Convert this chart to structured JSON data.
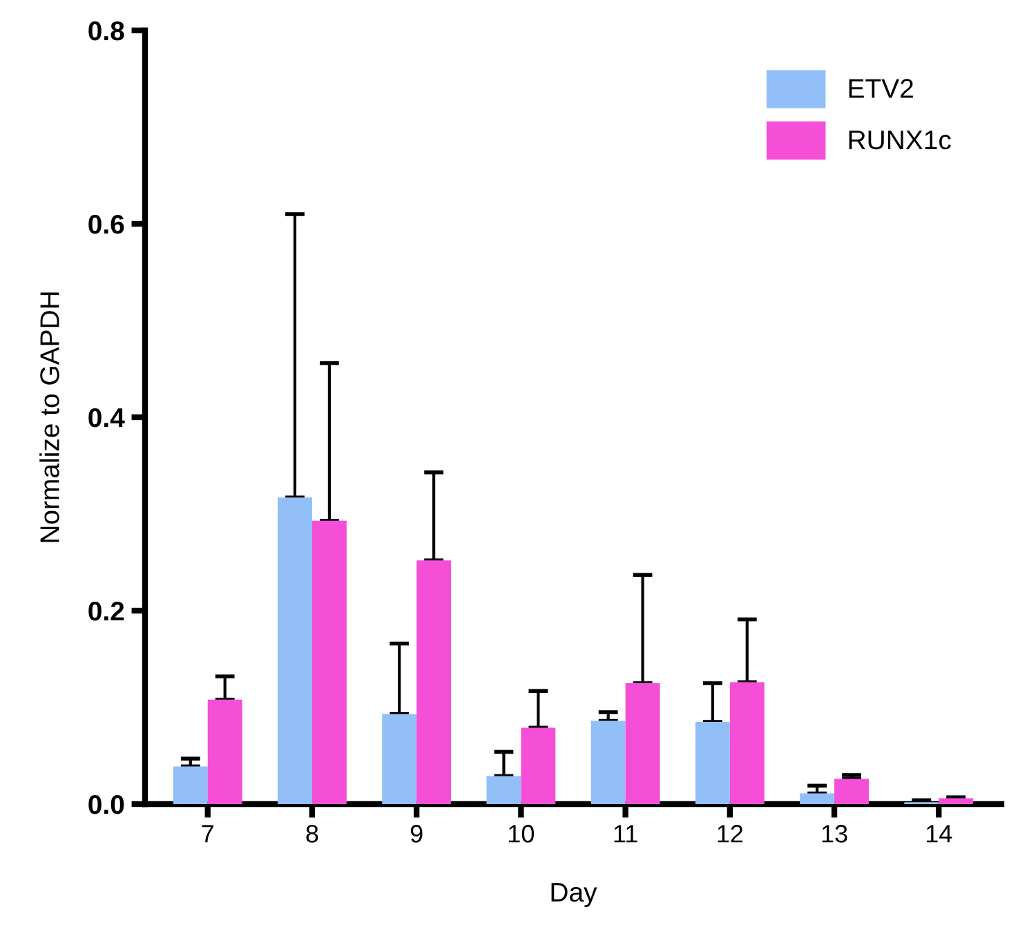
{
  "chart_data": {
    "type": "bar",
    "xlabel": "Day",
    "ylabel": "Normalize to GAPDH",
    "categories": [
      "7",
      "8",
      "9",
      "10",
      "11",
      "12",
      "13",
      "14"
    ],
    "series": [
      {
        "name": "ETV2",
        "color": "#92bff8",
        "values": [
          0.039,
          0.317,
          0.093,
          0.029,
          0.086,
          0.085,
          0.011,
          0.002
        ],
        "errors": [
          [
            0.039,
            0.047
          ],
          [
            0.317,
            0.61
          ],
          [
            0.093,
            0.166
          ],
          [
            0.029,
            0.054
          ],
          [
            0.086,
            0.095
          ],
          [
            0.085,
            0.125
          ],
          [
            0.011,
            0.019
          ],
          [
            0.002,
            0.004
          ]
        ]
      },
      {
        "name": "RUNX1c",
        "color": "#f54fd8",
        "values": [
          0.108,
          0.293,
          0.252,
          0.079,
          0.125,
          0.126,
          0.026,
          0.006
        ],
        "errors": [
          [
            0.108,
            0.132
          ],
          [
            0.293,
            0.456
          ],
          [
            0.252,
            0.343
          ],
          [
            0.079,
            0.117
          ],
          [
            0.125,
            0.237
          ],
          [
            0.126,
            0.191
          ],
          [
            0.026,
            0.03
          ],
          [
            0.006,
            0.007
          ]
        ]
      }
    ],
    "ylim": [
      0,
      0.8
    ],
    "yticks": [
      {
        "value": 0,
        "label": "0.0"
      },
      {
        "value": 0.2,
        "label": "0.2"
      },
      {
        "value": 0.4,
        "label": "0.4"
      },
      {
        "value": 0.6,
        "label": "0.6"
      },
      {
        "value": 0.8,
        "label": "0.8"
      }
    ],
    "legend": "top right",
    "grid": false
  }
}
